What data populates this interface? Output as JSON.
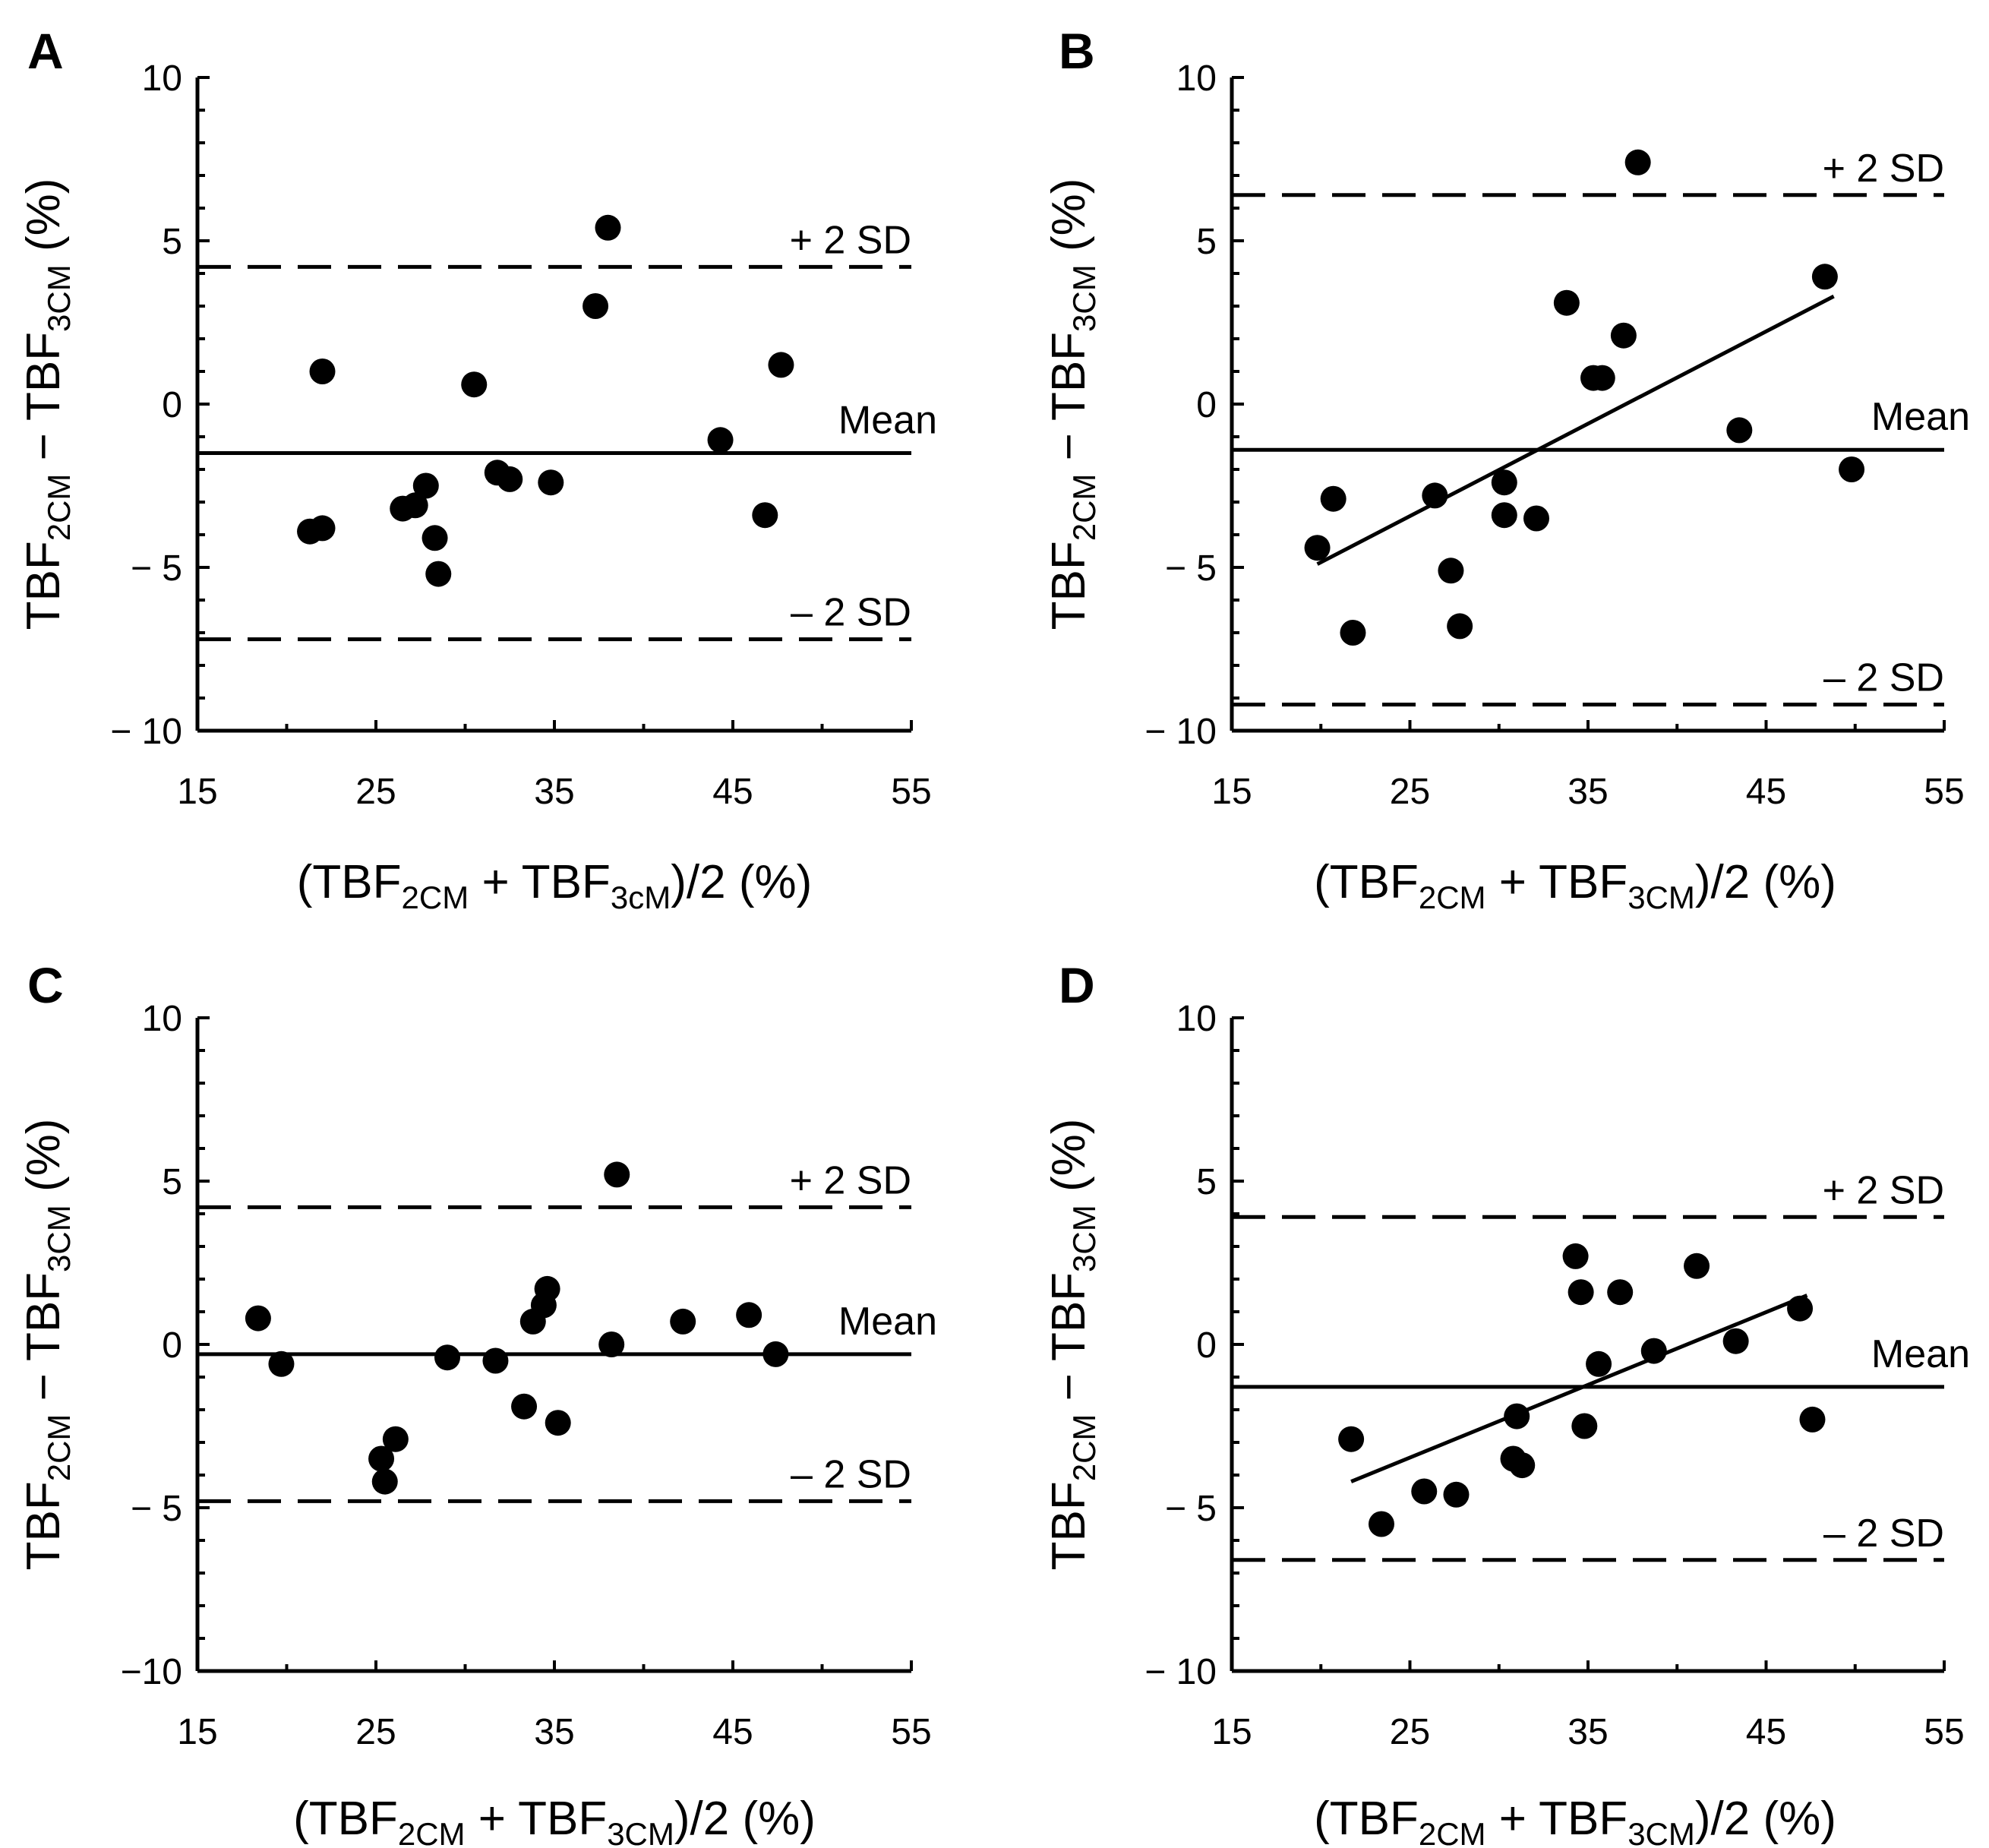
{
  "colors": {
    "background": "#ffffff",
    "ink": "#000000"
  },
  "chart_data": [
    {
      "type": "scatter",
      "panel_label": "A",
      "xlabel": "(TBF2CM + TBF3cM)/2 (%)",
      "ylabel": "TBF2CM − TBF3CM (%)",
      "x_ticks": [
        "15",
        "25",
        "35",
        "45",
        "55"
      ],
      "y_ticks": [
        "10",
        "5",
        "0",
        "− 5",
        "− 10"
      ],
      "xlim": [
        15,
        55
      ],
      "ylim": [
        -10,
        10
      ],
      "points": [
        [
          21.3,
          -3.9
        ],
        [
          22.0,
          -3.8
        ],
        [
          22.0,
          1.0
        ],
        [
          26.5,
          -3.2
        ],
        [
          27.2,
          -3.1
        ],
        [
          27.8,
          -2.5
        ],
        [
          28.3,
          -4.1
        ],
        [
          28.5,
          -5.2
        ],
        [
          30.5,
          0.6
        ],
        [
          31.8,
          -2.1
        ],
        [
          32.5,
          -2.3
        ],
        [
          34.8,
          -2.4
        ],
        [
          37.3,
          3.0
        ],
        [
          38.0,
          5.4
        ],
        [
          44.3,
          -1.1
        ],
        [
          46.8,
          -3.4
        ],
        [
          47.7,
          1.2
        ]
      ],
      "mean": -1.5,
      "plus_2sd": 4.2,
      "minus_2sd": -7.2,
      "mean_label": "Mean",
      "plus_label": "+ 2 SD",
      "minus_label": "– 2 SD"
    },
    {
      "type": "scatter",
      "panel_label": "B",
      "xlabel": "(TBF2CM + TBF3CM)/2 (%)",
      "ylabel": "TBF2CM − TBF3CM (%)",
      "x_ticks": [
        "15",
        "25",
        "35",
        "45",
        "55"
      ],
      "y_ticks": [
        "10",
        "5",
        "0",
        "− 5",
        "− 10"
      ],
      "xlim": [
        15,
        55
      ],
      "ylim": [
        -10,
        10
      ],
      "points": [
        [
          19.8,
          -4.4
        ],
        [
          20.7,
          -2.9
        ],
        [
          21.8,
          -7.0
        ],
        [
          26.4,
          -2.8
        ],
        [
          27.3,
          -5.1
        ],
        [
          27.8,
          -6.8
        ],
        [
          30.3,
          -2.4
        ],
        [
          30.3,
          -3.4
        ],
        [
          32.1,
          -3.5
        ],
        [
          33.8,
          3.1
        ],
        [
          35.3,
          0.8
        ],
        [
          35.8,
          0.8
        ],
        [
          37.0,
          2.1
        ],
        [
          37.8,
          7.4
        ],
        [
          43.5,
          -0.8
        ],
        [
          48.3,
          3.9
        ],
        [
          49.8,
          -2.0
        ]
      ],
      "regression": [
        [
          19.8,
          -4.9
        ],
        [
          48.8,
          3.3
        ]
      ],
      "mean": -1.4,
      "plus_2sd": 6.4,
      "minus_2sd": -9.2,
      "mean_label": "Mean",
      "plus_label": "+ 2 SD",
      "minus_label": "– 2 SD"
    },
    {
      "type": "scatter",
      "panel_label": "C",
      "xlabel": "(TBF2CM + TBF3CM)/2 (%)",
      "ylabel": "TBF2CM − TBF3CM (%)",
      "x_ticks": [
        "15",
        "25",
        "35",
        "45",
        "55"
      ],
      "y_ticks": [
        "10",
        "5",
        "0",
        "− 5",
        "−10"
      ],
      "xlim": [
        15,
        55
      ],
      "ylim": [
        -10,
        10
      ],
      "points": [
        [
          18.4,
          0.8
        ],
        [
          19.7,
          -0.6
        ],
        [
          25.3,
          -3.5
        ],
        [
          25.5,
          -4.2
        ],
        [
          26.1,
          -2.9
        ],
        [
          29.0,
          -0.4
        ],
        [
          31.7,
          -0.5
        ],
        [
          33.3,
          -1.9
        ],
        [
          33.8,
          0.7
        ],
        [
          34.4,
          1.2
        ],
        [
          34.6,
          1.7
        ],
        [
          35.2,
          -2.4
        ],
        [
          38.2,
          0.0
        ],
        [
          38.5,
          5.2
        ],
        [
          42.2,
          0.7
        ],
        [
          45.9,
          0.9
        ],
        [
          47.4,
          -0.3
        ]
      ],
      "mean": -0.3,
      "plus_2sd": 4.2,
      "minus_2sd": -4.8,
      "mean_label": "Mean",
      "plus_label": "+ 2 SD",
      "minus_label": "– 2 SD"
    },
    {
      "type": "scatter",
      "panel_label": "D",
      "xlabel": "(TBF2CM + TBF3CM)/2 (%)",
      "ylabel": "TBF2CM − TBF3CM (%)",
      "x_ticks": [
        "15",
        "25",
        "35",
        "45",
        "55"
      ],
      "y_ticks": [
        "10",
        "5",
        "0",
        "− 5",
        "− 10"
      ],
      "xlim": [
        15,
        55
      ],
      "ylim": [
        -10,
        10
      ],
      "points": [
        [
          21.7,
          -2.9
        ],
        [
          23.4,
          -5.5
        ],
        [
          25.8,
          -4.5
        ],
        [
          27.6,
          -4.6
        ],
        [
          30.8,
          -3.5
        ],
        [
          31.0,
          -2.2
        ],
        [
          31.3,
          -3.7
        ],
        [
          34.3,
          2.7
        ],
        [
          34.6,
          1.6
        ],
        [
          34.8,
          -2.5
        ],
        [
          35.6,
          -0.6
        ],
        [
          36.8,
          1.6
        ],
        [
          38.7,
          -0.2
        ],
        [
          41.1,
          2.4
        ],
        [
          43.3,
          0.1
        ],
        [
          46.9,
          1.1
        ],
        [
          47.6,
          -2.3
        ]
      ],
      "regression": [
        [
          21.7,
          -4.2
        ],
        [
          47.3,
          1.5
        ]
      ],
      "mean": -1.3,
      "plus_2sd": 3.9,
      "minus_2sd": -6.6,
      "mean_label": "Mean",
      "plus_label": "+ 2 SD",
      "minus_label": "– 2 SD"
    }
  ]
}
